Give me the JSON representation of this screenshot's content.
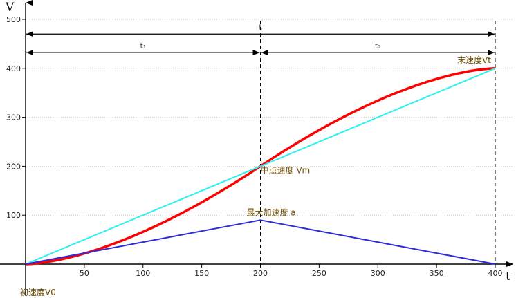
{
  "chart_data": {
    "type": "line",
    "xlabel": "t",
    "ylabel": "V",
    "xlim": [
      0,
      400
    ],
    "ylim": [
      0,
      500
    ],
    "xticks": [
      50,
      100,
      150,
      200,
      250,
      300,
      350,
      400
    ],
    "yticks": [
      100,
      200,
      300,
      400,
      500
    ],
    "grid": true,
    "colors": {
      "s_curve": "#ff0000",
      "linear": "#2af0f0",
      "acceleration": "#2b2bdc",
      "label": "#6b4a00"
    },
    "series": [
      {
        "x": [
          0,
          25,
          50,
          75,
          100,
          125,
          150,
          175,
          200,
          225,
          250,
          275,
          300,
          325,
          350,
          375,
          400
        ],
        "values": [
          0,
          3,
          12,
          27,
          47,
          73,
          104,
          141,
          200,
          259,
          296,
          327,
          353,
          373,
          388,
          397,
          400
        ]
      },
      {
        "x": [
          0,
          400
        ],
        "values": [
          0,
          400
        ]
      },
      {
        "x": [
          0,
          200,
          400
        ],
        "values": [
          0,
          90,
          0
        ]
      }
    ],
    "vlines": [
      200,
      400
    ],
    "spans": [
      {
        "label": "t",
        "from": 0,
        "to": 400,
        "y": 470
      },
      {
        "label": "t₁",
        "from": 0,
        "to": 200,
        "y": 432
      },
      {
        "label": "t₂",
        "from": 200,
        "to": 400,
        "y": 432
      }
    ],
    "annotations": [
      {
        "text": "末速度Vt",
        "x": 400,
        "y": 400
      },
      {
        "text": "中点速度 Vm",
        "x": 200,
        "y": 200
      },
      {
        "text": "最大加速度 a",
        "x": 200,
        "y": 90
      },
      {
        "text": "初速度V0",
        "x": 0,
        "y": 0
      }
    ]
  }
}
